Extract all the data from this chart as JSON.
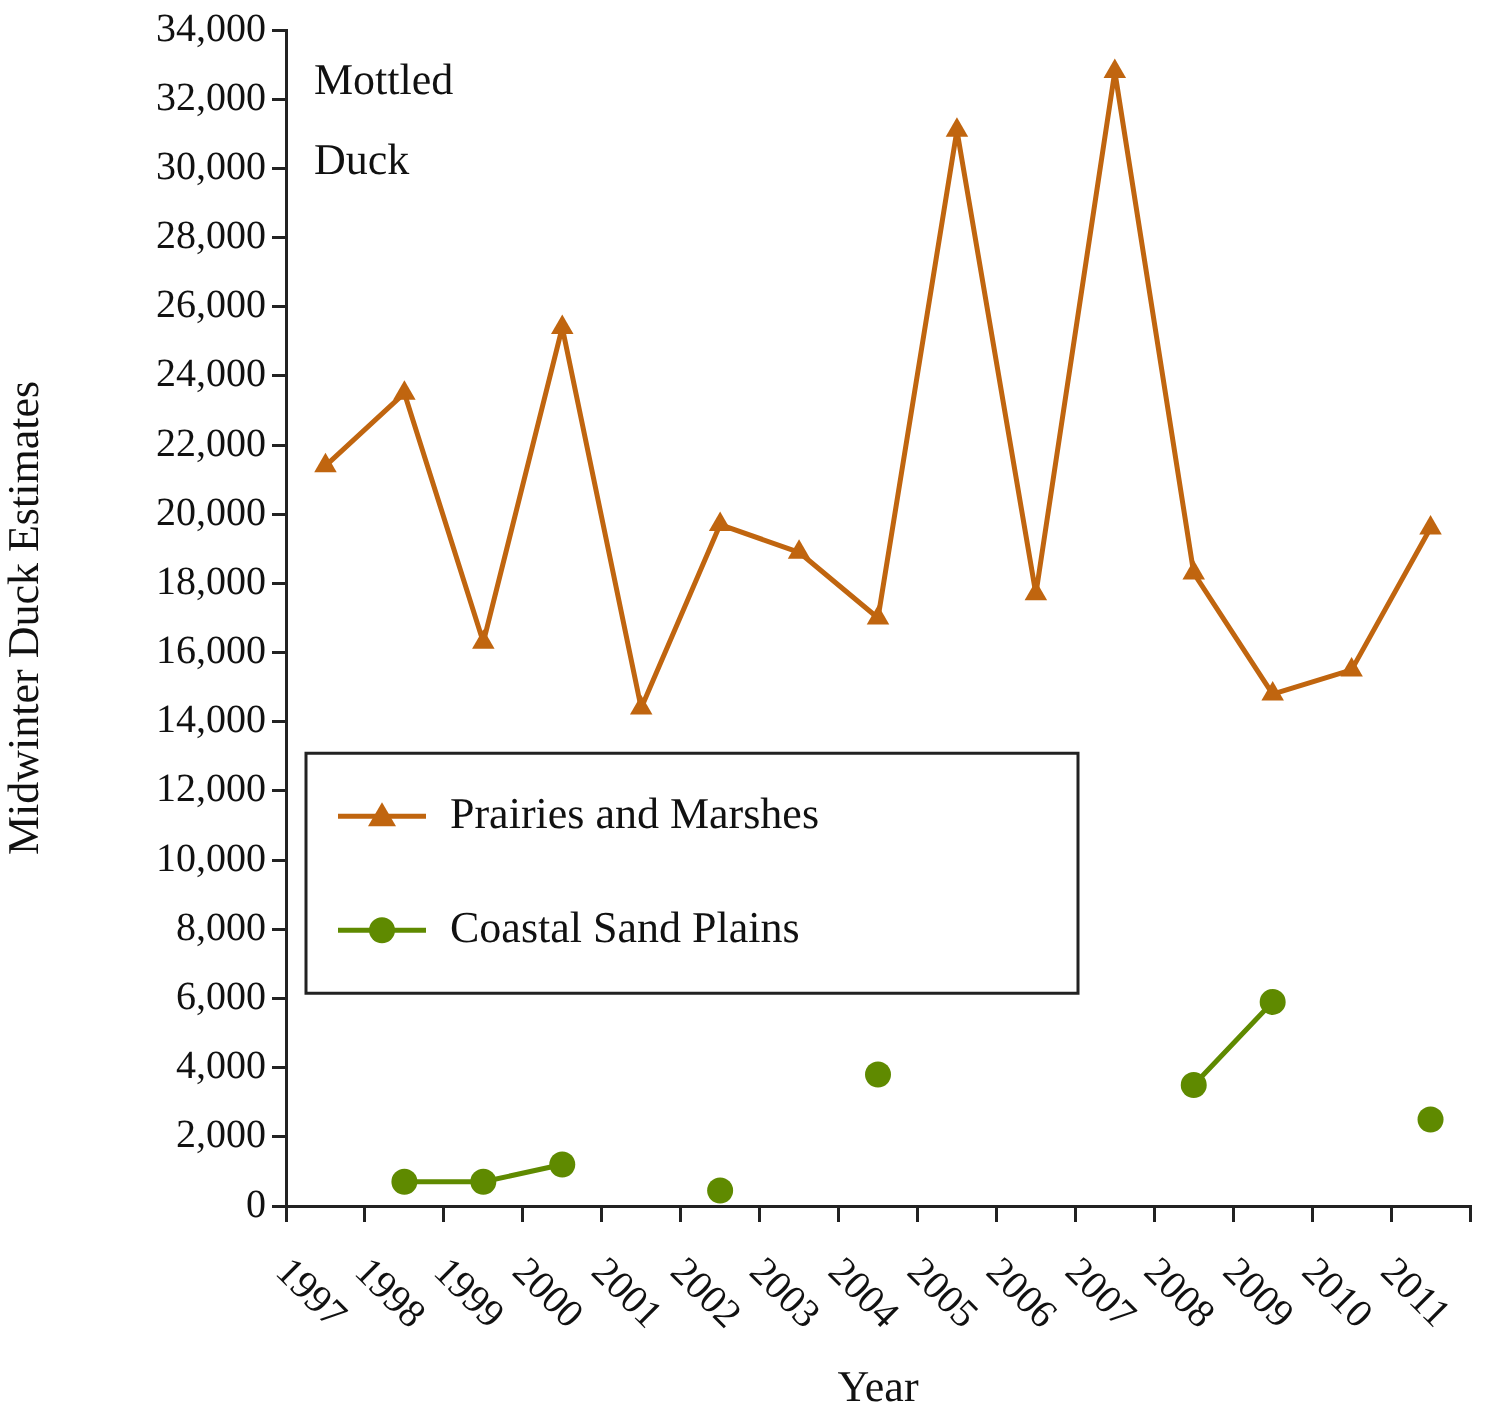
{
  "chart_data": {
    "type": "line",
    "xlabel": "Year",
    "ylabel": "Midwinter Duck Estimates",
    "annotations": [
      "Mottled Duck"
    ],
    "categories": [
      "1997",
      "1998",
      "1999",
      "2000",
      "2001",
      "2002",
      "2003",
      "2004",
      "2005",
      "2006",
      "2007",
      "2008",
      "2009",
      "2010",
      "2011"
    ],
    "series": [
      {
        "name": "Prairies and Marshes",
        "color": "#c0650f",
        "marker": "triangle",
        "values": [
          21400,
          23500,
          16300,
          25400,
          14400,
          19700,
          18900,
          17000,
          31100,
          17700,
          32800,
          18300,
          14800,
          15500,
          19600
        ]
      },
      {
        "name": "Coastal Sand Plains",
        "color": "#5f8a00",
        "marker": "circle",
        "values": [
          null,
          700,
          700,
          1200,
          null,
          450,
          null,
          3800,
          null,
          null,
          null,
          3500,
          5900,
          null,
          2500
        ]
      }
    ],
    "ylim": [
      0,
      34000
    ],
    "yticks": [
      0,
      {
        "value": 2000,
        "label": "2,000"
      },
      {
        "value": 4000,
        "label": "4,000"
      },
      {
        "value": 6000,
        "label": "6,000"
      },
      {
        "value": 8000,
        "label": "8,000"
      },
      {
        "value": 10000,
        "label": "10,000"
      },
      {
        "value": 12000,
        "label": "12,000"
      },
      {
        "value": 14000,
        "label": "14,000"
      },
      {
        "value": 16000,
        "label": "16,000"
      },
      {
        "value": 18000,
        "label": "18,000"
      },
      {
        "value": 20000,
        "label": "20,000"
      },
      {
        "value": 22000,
        "label": "22,000"
      },
      {
        "value": 24000,
        "label": "24,000"
      },
      {
        "value": 26000,
        "label": "26,000"
      },
      {
        "value": 28000,
        "label": "28,000"
      },
      {
        "value": 30000,
        "label": "30,000"
      },
      {
        "value": 32000,
        "label": "32,000"
      },
      {
        "value": 34000,
        "label": "34,000"
      }
    ],
    "grid": false,
    "legend": "left",
    "line_style": "solid"
  }
}
